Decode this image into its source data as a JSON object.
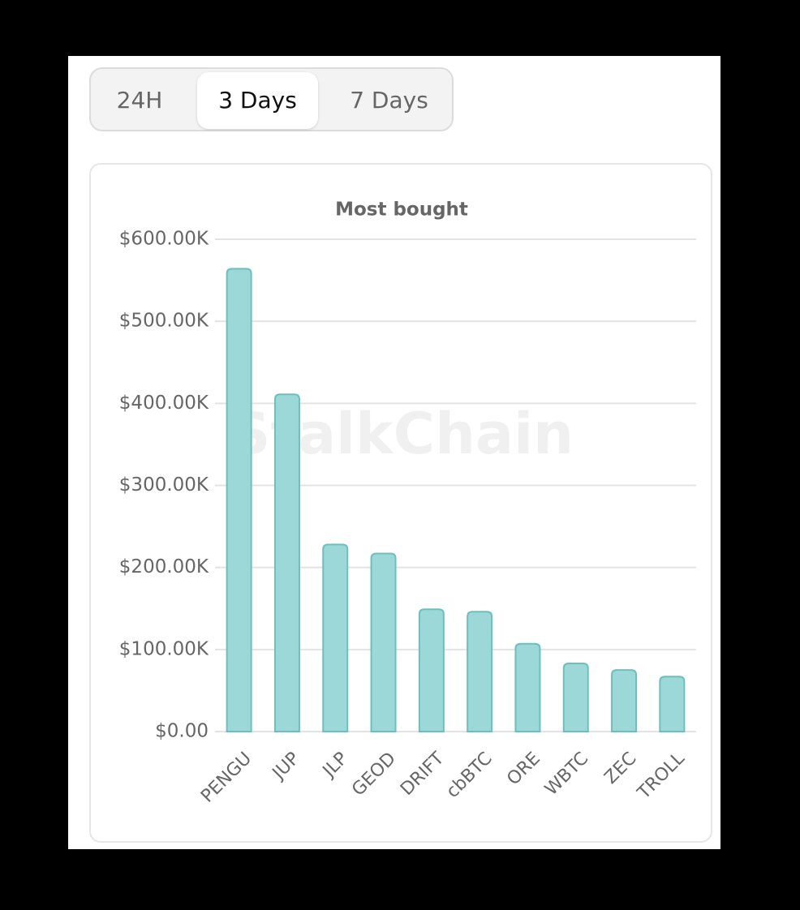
{
  "tabs": [
    "24H",
    "3 Days",
    "7 Days"
  ],
  "chart_data": {
    "type": "bar",
    "title": "Most bought",
    "watermark": "StalkChain",
    "categories": [
      "PENGU",
      "JUP",
      "JLP",
      "GEOD",
      "DRIFT",
      "cbBTC",
      "ORE",
      "WBTC",
      "ZEC",
      "TROLL"
    ],
    "values": [
      564000,
      411000,
      228000,
      217000,
      149000,
      146000,
      107000,
      83000,
      75000,
      67000
    ],
    "color": "#9dd8d8",
    "edge_color": "#6dbfbf",
    "ylim": [
      0,
      600000
    ],
    "yticks": [
      {
        "value": 0,
        "label": "$0.00"
      },
      {
        "value": 100000,
        "label": "$100.00K"
      },
      {
        "value": 200000,
        "label": "$200.00K"
      },
      {
        "value": 300000,
        "label": "$300.00K"
      },
      {
        "value": 400000,
        "label": "$400.00K"
      },
      {
        "value": 500000,
        "label": "$500.00K"
      },
      {
        "value": 600000,
        "label": "$600.00K"
      }
    ],
    "grid": true
  }
}
